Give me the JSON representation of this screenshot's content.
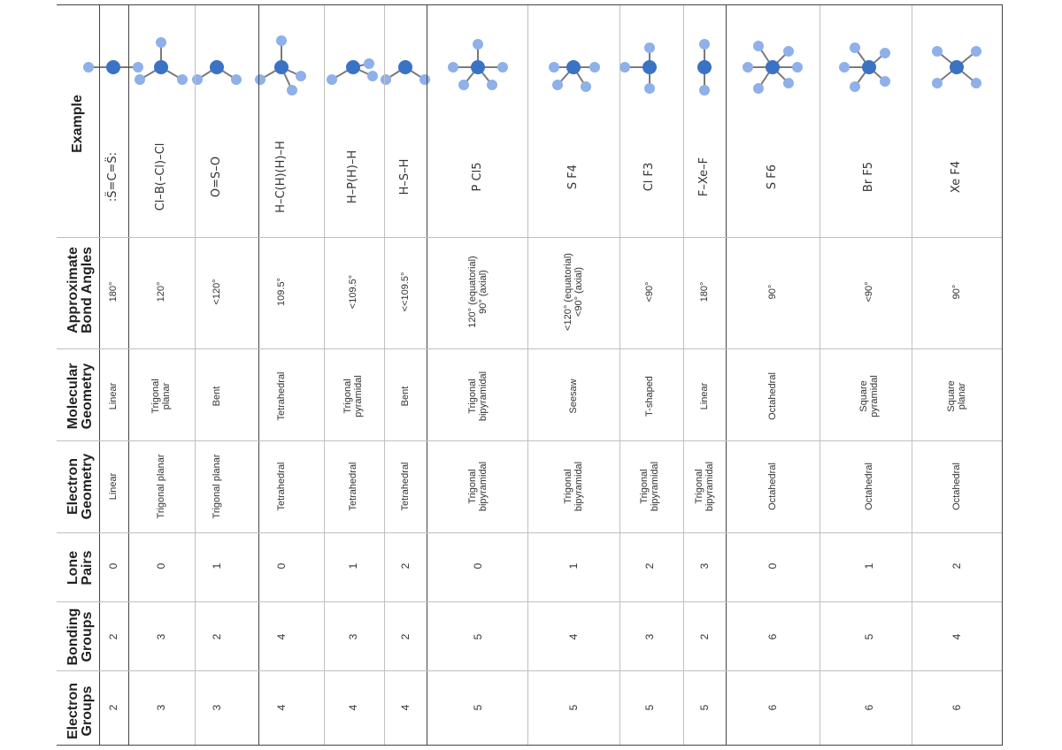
{
  "headers": {
    "electron_groups": "Electron\nGroups",
    "bonding_groups": "Bonding\nGroups",
    "lone_pairs": "Lone\nPairs",
    "electron_geometry": "Electron\nGeometry",
    "molecular_geometry": "Molecular\nGeometry",
    "bond_angles": "Approximate\nBond Angles",
    "example": "Example"
  },
  "rows": [
    {
      "electron_groups": "2",
      "bonding_groups": "2",
      "lone_pairs": "0",
      "electron_geometry": "Linear",
      "molecular_geometry": "Linear",
      "bond_angles": "180°",
      "lewis": ":S̈=C=S̈:",
      "model_icon": "linear-model-icon"
    },
    {
      "electron_groups": "3",
      "bonding_groups": "3",
      "lone_pairs": "0",
      "electron_geometry": "Trigonal planar",
      "molecular_geometry": "Trigonal\nplanar",
      "bond_angles": "120°",
      "lewis": "Cl–B(–Cl)–Cl",
      "model_icon": "trigonal-planar-model-icon"
    },
    {
      "electron_groups": "3",
      "bonding_groups": "2",
      "lone_pairs": "1",
      "electron_geometry": "Trigonal planar",
      "molecular_geometry": "Bent",
      "bond_angles": "<120°",
      "lewis": "O=S–O",
      "model_icon": "bent-model-icon"
    },
    {
      "electron_groups": "4",
      "bonding_groups": "4",
      "lone_pairs": "0",
      "electron_geometry": "Tetrahedral",
      "molecular_geometry": "Tetrahedral",
      "bond_angles": "109.5°",
      "lewis": "H–C(H)(H)–H",
      "model_icon": "tetrahedral-model-icon"
    },
    {
      "electron_groups": "4",
      "bonding_groups": "3",
      "lone_pairs": "1",
      "electron_geometry": "Tetrahedral",
      "molecular_geometry": "Trigonal\npyramidal",
      "bond_angles": "<109.5°",
      "lewis": "H–P(H)–H",
      "model_icon": "trigonal-pyramidal-model-icon"
    },
    {
      "electron_groups": "4",
      "bonding_groups": "2",
      "lone_pairs": "2",
      "electron_geometry": "Tetrahedral",
      "molecular_geometry": "Bent",
      "bond_angles": "<<109.5°",
      "lewis": "H–S–H",
      "model_icon": "bent-tetrahedral-model-icon"
    },
    {
      "electron_groups": "5",
      "bonding_groups": "5",
      "lone_pairs": "0",
      "electron_geometry": "Trigonal\nbipyramidal",
      "molecular_geometry": "Trigonal\nbipyramidal",
      "bond_angles": "120° (equatorial)\n90° (axial)",
      "lewis": "P Cl5",
      "model_icon": "trigonal-bipyramidal-model-icon"
    },
    {
      "electron_groups": "5",
      "bonding_groups": "4",
      "lone_pairs": "1",
      "electron_geometry": "Trigonal\nbipyramidal",
      "molecular_geometry": "Seesaw",
      "bond_angles": "<120° (equatorial)\n<90° (axial)",
      "lewis": "S F4",
      "model_icon": "seesaw-model-icon"
    },
    {
      "electron_groups": "5",
      "bonding_groups": "3",
      "lone_pairs": "2",
      "electron_geometry": "Trigonal\nbipyramidal",
      "molecular_geometry": "T-shaped",
      "bond_angles": "<90°",
      "lewis": "Cl F3",
      "model_icon": "t-shaped-model-icon"
    },
    {
      "electron_groups": "5",
      "bonding_groups": "2",
      "lone_pairs": "3",
      "electron_geometry": "Trigonal\nbipyramidal",
      "molecular_geometry": "Linear",
      "bond_angles": "180°",
      "lewis": "F–Xe–F",
      "model_icon": "linear-xe-model-icon"
    },
    {
      "electron_groups": "6",
      "bonding_groups": "6",
      "lone_pairs": "0",
      "electron_geometry": "Octahedral",
      "molecular_geometry": "Octahedral",
      "bond_angles": "90°",
      "lewis": "S F6",
      "model_icon": "octahedral-model-icon"
    },
    {
      "electron_groups": "6",
      "bonding_groups": "5",
      "lone_pairs": "1",
      "electron_geometry": "Octahedral",
      "molecular_geometry": "Square\npyramidal",
      "bond_angles": "<90°",
      "lewis": "Br F5",
      "model_icon": "square-pyramidal-model-icon"
    },
    {
      "electron_groups": "6",
      "bonding_groups": "4",
      "lone_pairs": "2",
      "electron_geometry": "Octahedral",
      "molecular_geometry": "Square\nplanar",
      "bond_angles": "90°",
      "lewis": "Xe F4",
      "model_icon": "square-planar-model-icon"
    }
  ],
  "colors": {
    "atom_center": "#3a72c4",
    "atom_outer": "#8fb0e8",
    "lone_pair_dots": "#2aa7a7",
    "grid": "#bfbfbf",
    "rule": "#444444"
  }
}
